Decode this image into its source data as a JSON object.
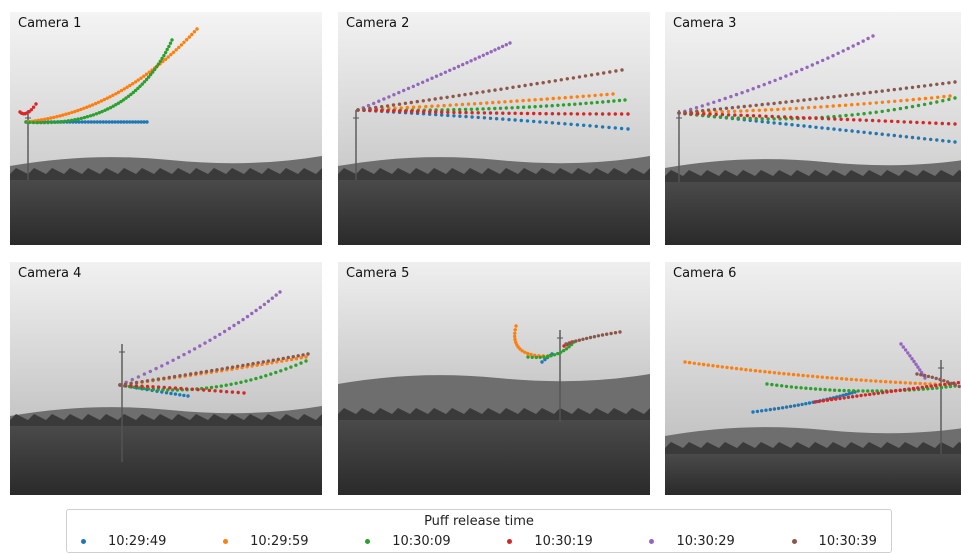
{
  "legend": {
    "title": "Puff release time"
  },
  "series": [
    {
      "name": "10:29:49",
      "color": "#1f77b4"
    },
    {
      "name": "10:29:59",
      "color": "#ff7f0e"
    },
    {
      "name": "10:30:09",
      "color": "#2ca02c"
    },
    {
      "name": "10:30:19",
      "color": "#d62728"
    },
    {
      "name": "10:30:29",
      "color": "#9467bd"
    },
    {
      "name": "10:30:39",
      "color": "#8c564b"
    }
  ],
  "cameras": [
    {
      "label": "Camera 1"
    },
    {
      "label": "Camera 2"
    },
    {
      "label": "Camera 3"
    },
    {
      "label": "Camera 4"
    },
    {
      "label": "Camera 5"
    },
    {
      "label": "Camera 6"
    }
  ]
}
